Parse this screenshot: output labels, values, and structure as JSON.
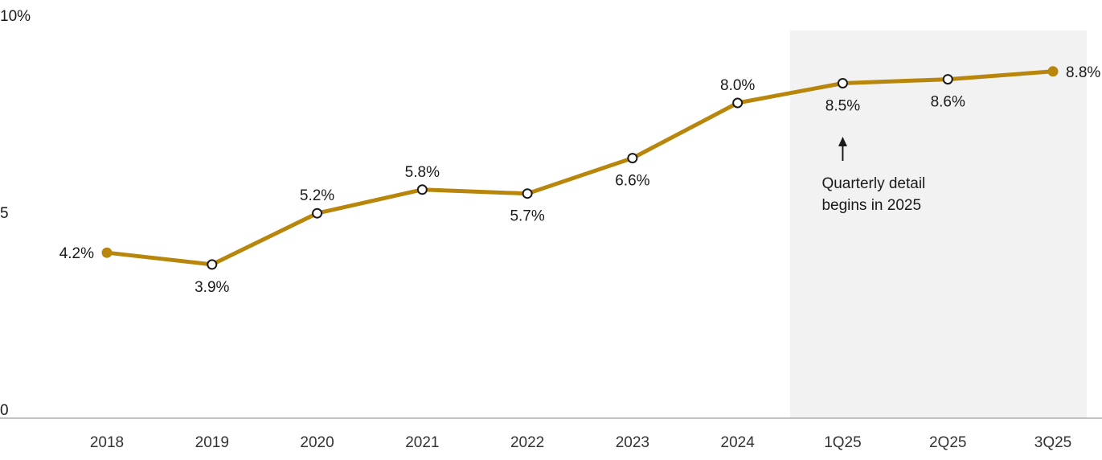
{
  "chart_data": {
    "type": "line",
    "categories": [
      "2018",
      "2019",
      "2020",
      "2021",
      "2022",
      "2023",
      "2024",
      "1Q25",
      "2Q25",
      "3Q25"
    ],
    "values": [
      4.2,
      3.9,
      5.2,
      5.8,
      5.7,
      6.6,
      8.0,
      8.5,
      8.6,
      8.8
    ],
    "point_labels": [
      "4.2%",
      "3.9%",
      "5.2%",
      "5.8%",
      "5.7%",
      "6.6%",
      "8.0%",
      "8.5%",
      "8.6%",
      "8.8%"
    ],
    "label_positions": [
      "left",
      "below",
      "above",
      "above",
      "below",
      "below",
      "above",
      "below",
      "below",
      "right"
    ],
    "marker_styles": [
      "filled",
      "open",
      "open",
      "open",
      "open",
      "open",
      "open",
      "open",
      "open",
      "filled"
    ],
    "title": "",
    "xlabel": "",
    "ylabel": "",
    "ylim": [
      0,
      10
    ],
    "yticks": [
      {
        "value": 0,
        "label": "0"
      },
      {
        "value": 5,
        "label": "5"
      },
      {
        "value": 10,
        "label": "10%"
      }
    ],
    "grid": false,
    "legend": null,
    "line_color": "#B8860B",
    "marker_outline_color": "#1a1a1a",
    "text_color": "#1a1a1a",
    "axis_color": "#ADADAD",
    "shaded_region": {
      "from_category": "1Q25",
      "color": "#F2F2F2",
      "annotation": {
        "line1": "Quarterly detail",
        "line2": "begins in 2025",
        "arrow_icon": "up-arrow"
      }
    }
  }
}
